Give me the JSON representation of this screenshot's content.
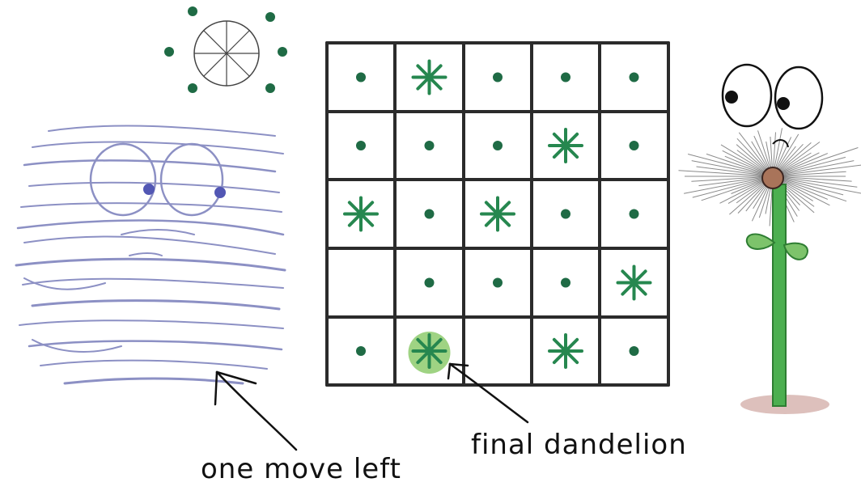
{
  "game": {
    "grid": {
      "rows": 5,
      "cols": 5,
      "cells": [
        [
          "seed",
          "dandelion",
          "seed",
          "seed",
          "seed"
        ],
        [
          "seed",
          "seed",
          "seed",
          "dandelion",
          "seed"
        ],
        [
          "dandelion",
          "seed",
          "dandelion",
          "seed",
          "seed"
        ],
        [
          "empty",
          "seed",
          "seed",
          "seed",
          "dandelion"
        ],
        [
          "seed",
          "final-dandelion",
          "empty",
          "dandelion",
          "seed"
        ]
      ]
    },
    "wind_compass": {
      "dots": [
        "N",
        "NE",
        "E",
        "SE",
        "SW",
        "W"
      ]
    }
  },
  "colors": {
    "grid_line": "#2b2b2b",
    "seed": "#1f6b45",
    "dandelion": "#26874f",
    "final_highlight": "#7fc45a",
    "wind": "#8c90c4",
    "stem": "#4caf50",
    "leaf": "#7dc36b",
    "flower_head": "#a9745a",
    "ground": "#a0675d"
  },
  "annotations": {
    "final_dandelion": "final dandelion",
    "one_move_left": "one move left"
  }
}
